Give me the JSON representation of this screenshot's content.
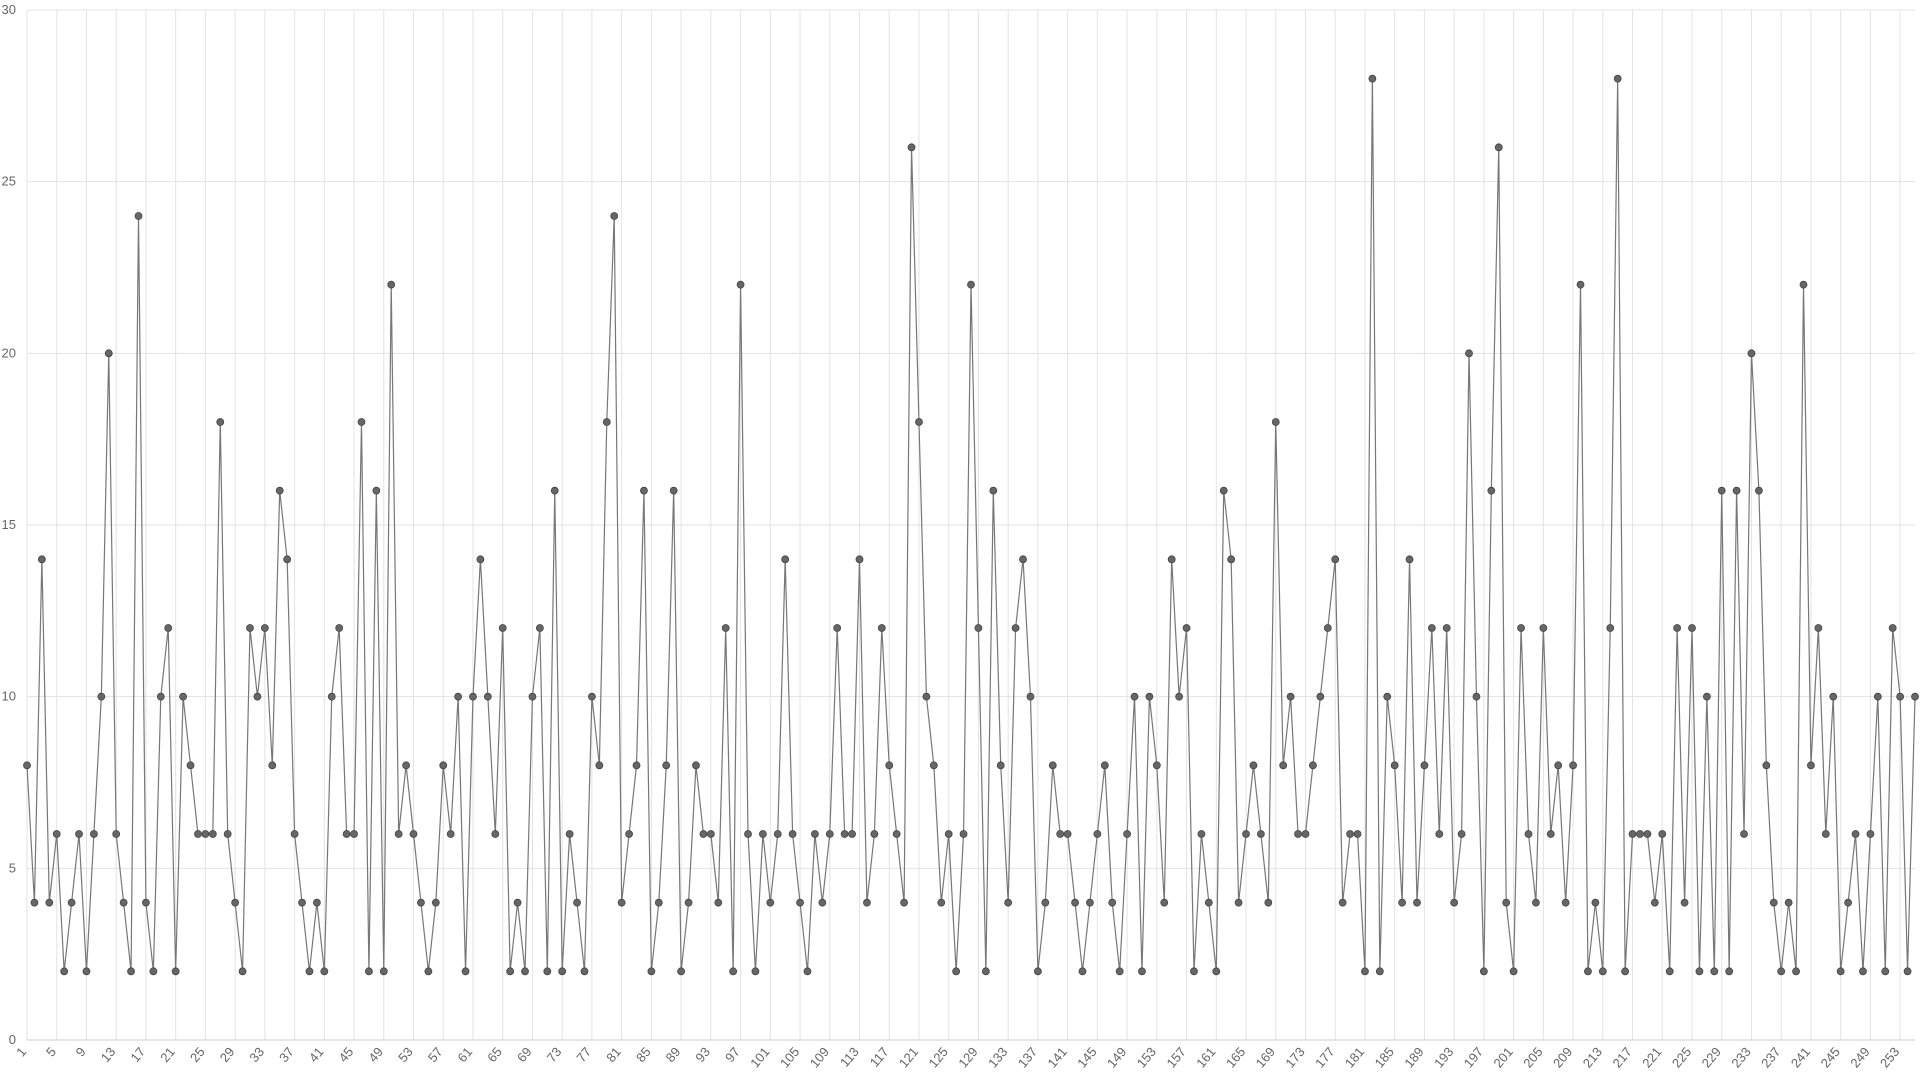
{
  "chart_data": {
    "type": "line",
    "categories": [
      "1",
      null,
      null,
      null,
      "5",
      null,
      null,
      null,
      "9",
      null,
      null,
      null,
      "13",
      null,
      null,
      null,
      "17",
      null,
      null,
      null,
      "21",
      null,
      null,
      null,
      "25",
      null,
      null,
      null,
      "29",
      null,
      null,
      null,
      "33",
      null,
      null,
      null,
      "37",
      null,
      null,
      null,
      "41",
      null,
      null,
      null,
      "45",
      null,
      null,
      null,
      "49",
      null,
      null,
      null,
      "53",
      null,
      null,
      null,
      "57",
      null,
      null,
      null,
      "61",
      null,
      null,
      null,
      "65",
      null,
      null,
      null,
      "69",
      null,
      null,
      null,
      "73",
      null,
      null,
      null,
      "77",
      null,
      null,
      null,
      "81",
      null,
      null,
      null,
      "85",
      null,
      null,
      null,
      "89",
      null,
      null,
      null,
      "93",
      null,
      null,
      null,
      "97",
      null,
      null,
      null,
      "101",
      null,
      null,
      null,
      "105",
      null,
      null,
      null,
      "109",
      null,
      null,
      null,
      "113",
      null,
      null,
      null,
      "117",
      null,
      null,
      null,
      "121",
      null,
      null,
      null,
      "125",
      null,
      null,
      null,
      "129",
      null,
      null,
      null,
      "133",
      null,
      null,
      null,
      "137",
      null,
      null,
      null,
      "141",
      null,
      null,
      null,
      "145",
      null,
      null,
      null,
      "149",
      null,
      null,
      null,
      "153",
      null,
      null,
      null,
      "157",
      null,
      null,
      null,
      "161",
      null,
      null,
      null,
      "165",
      null,
      null,
      null,
      "169",
      null,
      null,
      null,
      "173",
      null,
      null,
      null,
      "177",
      null,
      null,
      null,
      "181",
      null,
      null,
      null,
      "185",
      null,
      null,
      null,
      "189",
      null,
      null,
      null,
      "193",
      null,
      null,
      null,
      "197",
      null,
      null,
      null,
      "201",
      null,
      null,
      null,
      "205",
      null,
      null,
      null,
      "209",
      null,
      null,
      null,
      "213",
      null,
      null,
      null,
      "217",
      null,
      null,
      null,
      "221",
      null,
      null,
      null,
      "225",
      null,
      null,
      null,
      "229",
      null,
      null,
      null,
      "233",
      null,
      null,
      null,
      "237",
      null,
      null,
      null,
      "241",
      null,
      null,
      null,
      "245",
      null,
      null,
      null,
      "249",
      null,
      null,
      null,
      "253",
      null,
      null
    ],
    "values": [
      8,
      4,
      14,
      4,
      6,
      2,
      4,
      6,
      2,
      6,
      10,
      20,
      6,
      4,
      2,
      24,
      4,
      2,
      10,
      12,
      2,
      10,
      8,
      6,
      6,
      6,
      18,
      6,
      4,
      2,
      12,
      10,
      12,
      8,
      16,
      14,
      6,
      4,
      2,
      4,
      2,
      10,
      12,
      6,
      6,
      18,
      2,
      16,
      2,
      22,
      6,
      8,
      6,
      4,
      2,
      4,
      8,
      6,
      10,
      2,
      10,
      14,
      10,
      6,
      12,
      2,
      4,
      2,
      10,
      12,
      2,
      16,
      2,
      6,
      4,
      2,
      10,
      8,
      18,
      24,
      4,
      6,
      8,
      16,
      2,
      4,
      8,
      16,
      2,
      4,
      8,
      6,
      6,
      4,
      12,
      2,
      22,
      6,
      2,
      6,
      4,
      6,
      14,
      6,
      4,
      2,
      6,
      4,
      6,
      12,
      6,
      6,
      14,
      4,
      6,
      12,
      8,
      6,
      4,
      26,
      18,
      10,
      8,
      4,
      6,
      2,
      6,
      22,
      12,
      2,
      16,
      8,
      4,
      12,
      14,
      10,
      2,
      4,
      8,
      6,
      6,
      4,
      2,
      4,
      6,
      8,
      4,
      2,
      6,
      10,
      2,
      10,
      8,
      4,
      14,
      10,
      12,
      2,
      6,
      4,
      2,
      16,
      14,
      4,
      6,
      8,
      6,
      4,
      18,
      8,
      10,
      6,
      6,
      8,
      10,
      12,
      14,
      4,
      6,
      6,
      2,
      28,
      2,
      10,
      8,
      4,
      14,
      4,
      8,
      12,
      6,
      12,
      4,
      6,
      20,
      10,
      2,
      16,
      26,
      4,
      2,
      12,
      6,
      4,
      12,
      6,
      8,
      4,
      8,
      22,
      2,
      4,
      2,
      12,
      28,
      2,
      6,
      6,
      6,
      4,
      6,
      2,
      12,
      4,
      12,
      2,
      10,
      2,
      16,
      2,
      16,
      6,
      20,
      16,
      8,
      4,
      2,
      4,
      2,
      22,
      8,
      12,
      6,
      10,
      2,
      4,
      6,
      2,
      6,
      10,
      2,
      12,
      10,
      2,
      10
    ],
    "color": "#666666",
    "ylim": [
      0,
      30
    ],
    "yticks": [
      0,
      5,
      10,
      15,
      20,
      25,
      30
    ],
    "grid": true
  }
}
